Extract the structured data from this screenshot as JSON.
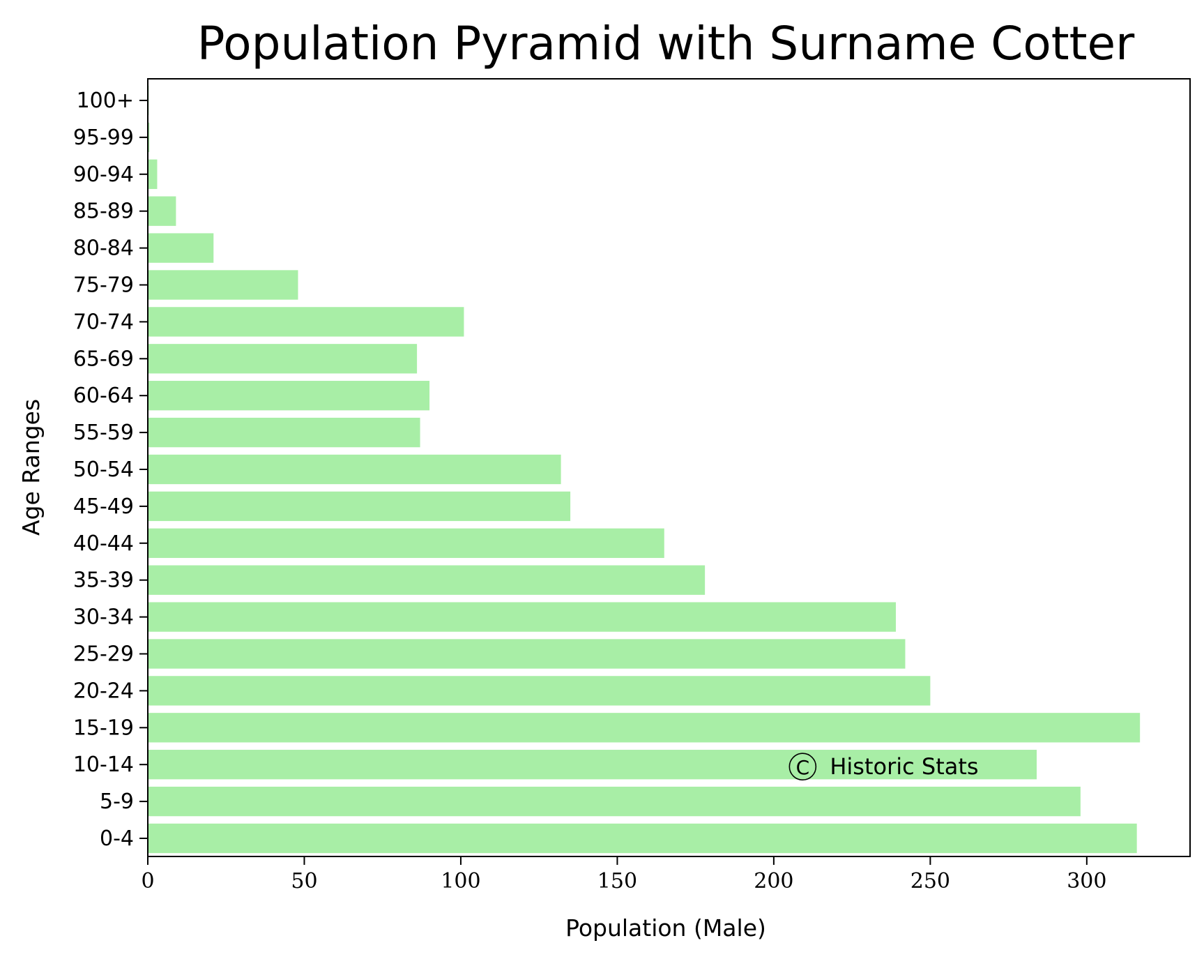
{
  "chart_data": {
    "type": "bar",
    "orientation": "horizontal",
    "title": "Population Pyramid with Surname Cotter",
    "xlabel": "Population (Male)",
    "ylabel": "Age Ranges",
    "categories": [
      "0-4",
      "5-9",
      "10-14",
      "15-19",
      "20-24",
      "25-29",
      "30-34",
      "35-39",
      "40-44",
      "45-49",
      "50-54",
      "55-59",
      "60-64",
      "65-69",
      "70-74",
      "75-79",
      "80-84",
      "85-89",
      "90-94",
      "95-99",
      "100+"
    ],
    "values": [
      316,
      298,
      284,
      317,
      250,
      242,
      239,
      178,
      165,
      135,
      132,
      87,
      90,
      86,
      101,
      48,
      21,
      9,
      3,
      0.5,
      0.3
    ],
    "xlim": [
      0,
      333
    ],
    "xticks": [
      0,
      50,
      100,
      150,
      200,
      250,
      300
    ],
    "bar_color": "#a8eea6",
    "grid": false,
    "annotation": {
      "symbol": "C",
      "text": "Historic Stats",
      "x": 205,
      "category": "10-14"
    }
  }
}
